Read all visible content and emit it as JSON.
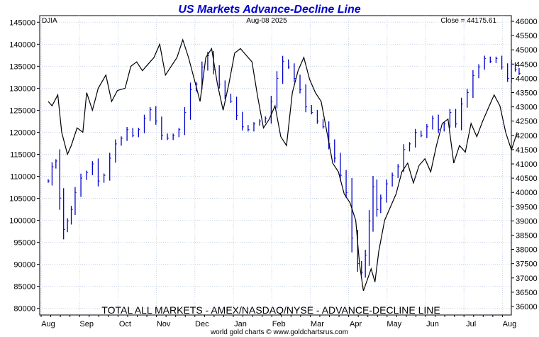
{
  "chart_data": {
    "type": "line",
    "title": "US Markets Advance-Decline Line",
    "ticker_label": "DJIA",
    "date_label": "Aug-08  2025",
    "close_label": "Close = 44175.61",
    "footer_label": "TOTAL ALL MARKETS - AMEX/NASDAQ/NYSE - ADVANCE-DECLINE LINE",
    "credit": "world gold charts © www.goldchartsrus.com",
    "grid": true,
    "x_ticks": [
      "Aug",
      "Sep",
      "Oct",
      "Nov",
      "Dec",
      "Jan",
      "Feb",
      "Mar",
      "Apr",
      "May",
      "Jun",
      "Jul",
      "Aug"
    ],
    "y_left": {
      "ylim": [
        78500,
        146500
      ],
      "ticks": [
        80000,
        85000,
        90000,
        95000,
        100000,
        105000,
        110000,
        115000,
        120000,
        125000,
        130000,
        135000,
        140000,
        145000
      ]
    },
    "y_right": {
      "ylim": [
        35700,
        46200
      ],
      "ticks": [
        36000,
        36500,
        37000,
        37500,
        38000,
        38500,
        39000,
        39500,
        40000,
        40500,
        41000,
        41500,
        42000,
        42500,
        43000,
        43500,
        44000,
        44500,
        45000,
        45500,
        46000
      ]
    },
    "series": [
      {
        "name": "",
        "axis": "left",
        "color": "#000000",
        "style": "line",
        "x": [
          0,
          0.1,
          0.25,
          0.35,
          0.5,
          0.6,
          0.75,
          0.9,
          1.0,
          1.15,
          1.3,
          1.5,
          1.65,
          1.8,
          2.0,
          2.15,
          2.3,
          2.45,
          2.6,
          2.75,
          2.9,
          3.05,
          3.2,
          3.35,
          3.5,
          3.65,
          3.8,
          3.95,
          4.1,
          4.25,
          4.4,
          4.55,
          4.7,
          4.85,
          5.0,
          5.15,
          5.3,
          5.45,
          5.6,
          5.75,
          5.9,
          6.05,
          6.2,
          6.35,
          6.5,
          6.65,
          6.8,
          6.95,
          7.1,
          7.25,
          7.4,
          7.55,
          7.7,
          7.85,
          8.0,
          8.1,
          8.2,
          8.3,
          8.4,
          8.5,
          8.6,
          8.75,
          8.9,
          9.05,
          9.2,
          9.35,
          9.5,
          9.65,
          9.8,
          9.95,
          10.1,
          10.25,
          10.4,
          10.55,
          10.7,
          10.85,
          11.0,
          11.15,
          11.3,
          11.45,
          11.6,
          11.75,
          11.9,
          12.05,
          12.2
        ],
        "values": [
          127000,
          126000,
          128500,
          120000,
          115000,
          117000,
          121000,
          120000,
          129000,
          125000,
          130000,
          133000,
          127000,
          129500,
          130000,
          135000,
          136000,
          134000,
          135500,
          137000,
          140000,
          133000,
          135000,
          137000,
          141000,
          137000,
          132000,
          127000,
          137000,
          139000,
          131000,
          125000,
          131000,
          138000,
          139000,
          137500,
          136000,
          128000,
          121000,
          123000,
          126000,
          119000,
          117000,
          129000,
          134000,
          137000,
          132000,
          129000,
          127000,
          120000,
          113000,
          111000,
          106000,
          104000,
          100000,
          90000,
          84000,
          86500,
          89000,
          86000,
          93000,
          100000,
          103000,
          106000,
          111000,
          113000,
          108500,
          112500,
          114000,
          111000,
          117000,
          122000,
          123000,
          113000,
          117000,
          115500,
          122000,
          119000,
          122500,
          125500,
          128500,
          126000,
          120000,
          116000,
          120000
        ]
      },
      {
        "name": "",
        "axis": "right",
        "color": "#0000cc",
        "style": "bar",
        "x": [
          0,
          0.1,
          0.2,
          0.3,
          0.4,
          0.5,
          0.6,
          0.7,
          0.85,
          1.0,
          1.15,
          1.3,
          1.45,
          1.6,
          1.75,
          1.9,
          2.05,
          2.2,
          2.35,
          2.5,
          2.65,
          2.8,
          2.95,
          3.1,
          3.25,
          3.4,
          3.55,
          3.7,
          3.85,
          4.0,
          4.15,
          4.3,
          4.45,
          4.6,
          4.75,
          4.9,
          5.05,
          5.2,
          5.35,
          5.5,
          5.65,
          5.8,
          5.95,
          6.1,
          6.25,
          6.4,
          6.55,
          6.7,
          6.85,
          7.0,
          7.15,
          7.3,
          7.45,
          7.6,
          7.75,
          7.9,
          8.05,
          8.15,
          8.25,
          8.35,
          8.45,
          8.55,
          8.65,
          8.8,
          8.95,
          9.1,
          9.25,
          9.4,
          9.55,
          9.7,
          9.85,
          10.0,
          10.15,
          10.3,
          10.45,
          10.6,
          10.75,
          10.9,
          11.05,
          11.2,
          11.35,
          11.5,
          11.65,
          11.8,
          11.95,
          12.05,
          12.15,
          12.25
        ],
        "values": [
          40400,
          40900,
          41100,
          39800,
          38700,
          39000,
          39400,
          40000,
          40500,
          40700,
          41000,
          40400,
          40600,
          41200,
          41700,
          41900,
          42200,
          42000,
          42200,
          42600,
          42900,
          42500,
          42000,
          41900,
          42000,
          42200,
          42800,
          43600,
          43800,
          44400,
          44800,
          44300,
          43800,
          43400,
          43200,
          42700,
          42300,
          42200,
          42400,
          42500,
          42600,
          43200,
          44000,
          44600,
          44400,
          44000,
          43600,
          43000,
          42800,
          42500,
          42300,
          41700,
          41200,
          40600,
          40000,
          38400,
          37500,
          37200,
          37800,
          39000,
          40200,
          39400,
          39800,
          40300,
          40600,
          40900,
          41500,
          41700,
          42100,
          42000,
          42300,
          42600,
          42200,
          42400,
          42800,
          42400,
          43100,
          43500,
          44100,
          44400,
          44700,
          44600,
          44700,
          44400,
          44000,
          44500,
          44300,
          44175.61
        ]
      }
    ]
  }
}
